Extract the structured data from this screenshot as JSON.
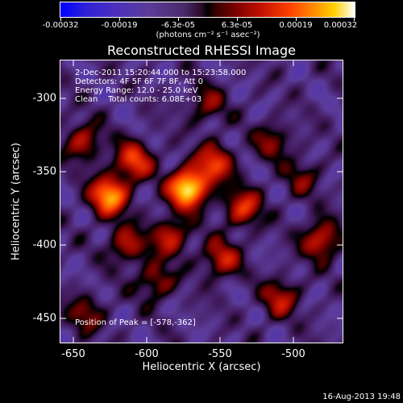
{
  "colorbar": {
    "ticks": [
      "-0.00032",
      "-0.00019",
      "-6.3e-05",
      "6.3e-05",
      "0.00019",
      "0.00032"
    ],
    "unit": "(photons cm⁻² s⁻¹ asec⁻²)"
  },
  "title": "Reconstructed RHESSI Image",
  "info": {
    "line1": "2-Dec-2011 15:20:44.000 to 15:23:58.000",
    "line2": "Detectors: 4F 5F 6F 7F 8F, Att 0",
    "line3": "Energy Range: 12.0 - 25.0 keV",
    "line4": "Clean    Total counts: 6.08E+03",
    "peak": "Position of Peak = [-578,-362]"
  },
  "axes": {
    "xlabel": "Heliocentric X (arcsec)",
    "ylabel": "Heliocentric Y (arcsec)",
    "xticks": [
      "-650",
      "-600",
      "-550",
      "-500"
    ],
    "yticks": [
      "-300",
      "-350",
      "-400",
      "-450"
    ]
  },
  "timestamp": "16-Aug-2013 19:48",
  "chart_data": {
    "type": "heatmap",
    "title": "Reconstructed RHESSI Image",
    "xlabel": "Heliocentric X (arcsec)",
    "ylabel": "Heliocentric Y (arcsec)",
    "xlim": [
      -665,
      -472
    ],
    "ylim": [
      -467,
      -275
    ],
    "colorbar_range": [
      -0.00032,
      0.00032
    ],
    "peak_position": [
      -578,
      -362
    ],
    "sources": [
      {
        "x": -578,
        "y": -362,
        "strength": 1.0
      },
      {
        "x": -632,
        "y": -367,
        "strength": 0.8
      },
      {
        "x": -615,
        "y": -343,
        "strength": 0.55
      },
      {
        "x": -560,
        "y": -345,
        "strength": 0.55
      },
      {
        "x": -540,
        "y": -375,
        "strength": 0.5
      },
      {
        "x": -590,
        "y": -395,
        "strength": 0.45
      },
      {
        "x": -620,
        "y": -400,
        "strength": 0.4
      },
      {
        "x": -555,
        "y": -410,
        "strength": 0.45
      },
      {
        "x": -600,
        "y": -425,
        "strength": 0.35
      },
      {
        "x": -515,
        "y": -437,
        "strength": 0.4
      },
      {
        "x": -487,
        "y": -397,
        "strength": 0.5
      },
      {
        "x": -650,
        "y": -330,
        "strength": 0.4
      },
      {
        "x": -648,
        "y": -447,
        "strength": 0.3
      },
      {
        "x": -565,
        "y": -305,
        "strength": 0.3
      },
      {
        "x": -520,
        "y": -330,
        "strength": 0.3
      },
      {
        "x": -500,
        "y": -355,
        "strength": 0.25
      }
    ]
  }
}
